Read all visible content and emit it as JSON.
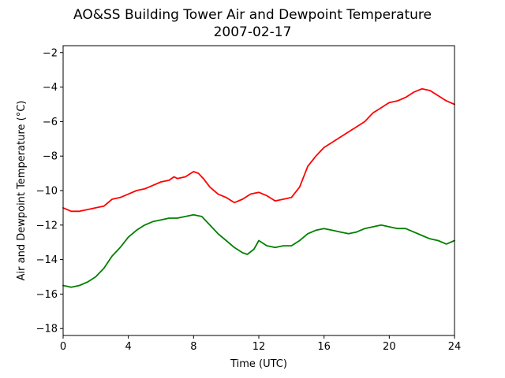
{
  "chart_data": {
    "type": "line",
    "title": "AO&SS Building Tower Air and Dewpoint Temperature",
    "subtitle": "2007-02-17",
    "xlabel": "Time (UTC)",
    "ylabel": "Air and Dewpoint Temperature (°C)",
    "xlim": [
      0,
      24
    ],
    "ylim": [
      -18.4,
      -1.6
    ],
    "xticks": [
      0,
      4,
      8,
      12,
      16,
      20,
      24
    ],
    "yticks": [
      -18,
      -16,
      -14,
      -12,
      -10,
      -8,
      -6,
      -4,
      -2
    ],
    "grid": false,
    "legend": "none",
    "series": [
      {
        "color": "#ff0000",
        "x": [
          0,
          0.5,
          1,
          1.5,
          2,
          2.5,
          3,
          3.5,
          4,
          4.5,
          5,
          5.5,
          6,
          6.5,
          6.8,
          7,
          7.5,
          8,
          8.3,
          8.6,
          9,
          9.5,
          10,
          10.5,
          11,
          11.5,
          12,
          12.5,
          13,
          13.5,
          14,
          14.5,
          15,
          15.5,
          16,
          16.5,
          17,
          17.5,
          18,
          18.5,
          19,
          19.5,
          20,
          20.5,
          21,
          21.5,
          22,
          22.5,
          23,
          23.5,
          24
        ],
        "y": [
          -11.0,
          -11.2,
          -11.2,
          -11.1,
          -11.0,
          -10.9,
          -10.5,
          -10.4,
          -10.2,
          -10.0,
          -9.9,
          -9.7,
          -9.5,
          -9.4,
          -9.2,
          -9.3,
          -9.2,
          -8.9,
          -9.0,
          -9.3,
          -9.8,
          -10.2,
          -10.4,
          -10.7,
          -10.5,
          -10.2,
          -10.1,
          -10.3,
          -10.6,
          -10.5,
          -10.4,
          -9.8,
          -8.6,
          -8.0,
          -7.5,
          -7.2,
          -6.9,
          -6.6,
          -6.3,
          -6.0,
          -5.5,
          -5.2,
          -4.9,
          -4.8,
          -4.6,
          -4.3,
          -4.1,
          -4.2,
          -4.5,
          -4.8,
          -5.0
        ]
      },
      {
        "color": "#008000",
        "x": [
          0,
          0.5,
          1,
          1.5,
          2,
          2.5,
          3,
          3.5,
          4,
          4.5,
          5,
          5.5,
          6,
          6.5,
          7,
          7.5,
          8,
          8.5,
          9,
          9.5,
          10,
          10.5,
          11,
          11.3,
          11.7,
          12,
          12.5,
          13,
          13.5,
          14,
          14.5,
          15,
          15.5,
          16,
          16.5,
          17,
          17.5,
          18,
          18.5,
          19,
          19.5,
          20,
          20.5,
          21,
          21.5,
          22,
          22.5,
          23,
          23.5,
          24
        ],
        "y": [
          -15.5,
          -15.6,
          -15.5,
          -15.3,
          -15.0,
          -14.5,
          -13.8,
          -13.3,
          -12.7,
          -12.3,
          -12.0,
          -11.8,
          -11.7,
          -11.6,
          -11.6,
          -11.5,
          -11.4,
          -11.5,
          -12.0,
          -12.5,
          -12.9,
          -13.3,
          -13.6,
          -13.7,
          -13.4,
          -12.9,
          -13.2,
          -13.3,
          -13.2,
          -13.2,
          -12.9,
          -12.5,
          -12.3,
          -12.2,
          -12.3,
          -12.4,
          -12.5,
          -12.4,
          -12.2,
          -12.1,
          -12.0,
          -12.1,
          -12.2,
          -12.2,
          -12.4,
          -12.6,
          -12.8,
          -12.9,
          -13.1,
          -12.9
        ]
      }
    ]
  }
}
